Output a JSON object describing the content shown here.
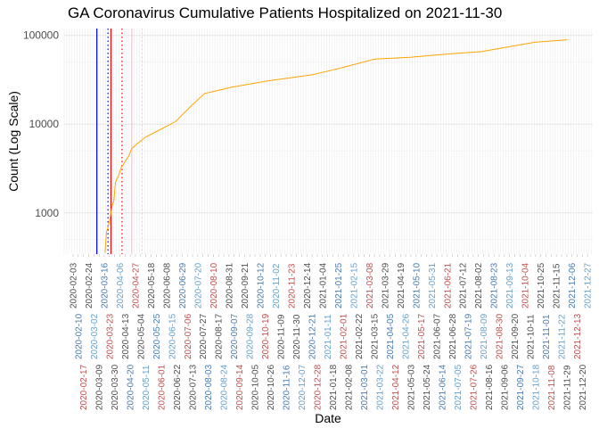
{
  "chart_data": {
    "type": "line",
    "title": "GA Coronavirus Cumulative Patients Hospitalized on 2021-11-30",
    "xlabel": "Date",
    "ylabel": "Count (Log Scale)",
    "y_scale": "log",
    "xlim": [
      "2020-01-22",
      "2022-01-03"
    ],
    "ylim": [
      343,
      119500
    ],
    "y_ticks": [
      1000,
      10000,
      100000
    ],
    "y_tick_labels": [
      "1000",
      "10000",
      "100000"
    ],
    "grid": true,
    "line_color": "#FFA500",
    "x_tick_colors": [
      "#4d4d4d",
      "#4a7ab0",
      "#c05050",
      "#4d4d4d",
      "#6aa0c8"
    ],
    "x_ticks": [
      "2020-02-03",
      "2020-02-10",
      "2020-02-17",
      "2020-02-24",
      "2020-03-02",
      "2020-03-09",
      "2020-03-16",
      "2020-03-23",
      "2020-03-30",
      "2020-04-06",
      "2020-04-13",
      "2020-04-20",
      "2020-04-27",
      "2020-05-04",
      "2020-05-11",
      "2020-05-18",
      "2020-05-25",
      "2020-06-01",
      "2020-06-08",
      "2020-06-15",
      "2020-06-22",
      "2020-06-29",
      "2020-07-06",
      "2020-07-13",
      "2020-07-20",
      "2020-07-27",
      "2020-08-03",
      "2020-08-10",
      "2020-08-17",
      "2020-08-24",
      "2020-08-31",
      "2020-09-07",
      "2020-09-14",
      "2020-09-21",
      "2020-09-28",
      "2020-10-05",
      "2020-10-12",
      "2020-10-19",
      "2020-10-26",
      "2020-11-02",
      "2020-11-09",
      "2020-11-16",
      "2020-11-23",
      "2020-11-30",
      "2020-12-07",
      "2020-12-14",
      "2020-12-21",
      "2020-12-28",
      "2021-01-04",
      "2021-01-11",
      "2021-01-18",
      "2021-01-25",
      "2021-02-01",
      "2021-02-08",
      "2021-02-15",
      "2021-02-22",
      "2021-03-01",
      "2021-03-08",
      "2021-03-15",
      "2021-03-22",
      "2021-03-29",
      "2021-04-05",
      "2021-04-12",
      "2021-04-19",
      "2021-04-26",
      "2021-05-03",
      "2021-05-10",
      "2021-05-17",
      "2021-05-24",
      "2021-05-31",
      "2021-06-07",
      "2021-06-14",
      "2021-06-21",
      "2021-06-28",
      "2021-07-05",
      "2021-07-12",
      "2021-07-19",
      "2021-07-26",
      "2021-08-02",
      "2021-08-09",
      "2021-08-16",
      "2021-08-23",
      "2021-08-30",
      "2021-09-06",
      "2021-09-13",
      "2021-09-20",
      "2021-09-27",
      "2021-10-04",
      "2021-10-11",
      "2021-10-18",
      "2021-10-25",
      "2021-11-01",
      "2021-11-08",
      "2021-11-15",
      "2021-11-22",
      "2021-11-29",
      "2021-12-06",
      "2021-12-13",
      "2021-12-20",
      "2021-12-27"
    ],
    "events": [
      {
        "date": "2020-03-06",
        "color": "#0000FF",
        "style": "solid"
      },
      {
        "date": "2020-03-21",
        "color": "#0000FF",
        "style": "dotted"
      },
      {
        "date": "2020-03-25",
        "color": "#FF0000",
        "style": "solid"
      },
      {
        "date": "2020-04-09",
        "color": "#FF0000",
        "style": "dotted"
      },
      {
        "date": "2020-04-22",
        "color": "#FFC0CB",
        "style": "solid"
      },
      {
        "date": "2020-05-06",
        "color": "#FFC0CB",
        "style": "dotted"
      }
    ],
    "series": [
      {
        "x": [
          "2020-03-17",
          "2020-03-19",
          "2020-03-23",
          "2020-03-25",
          "2020-03-27",
          "2020-03-29",
          "2020-03-31",
          "2020-04-04",
          "2020-04-08",
          "2020-04-10",
          "2020-04-15",
          "2020-04-18",
          "2020-04-22",
          "2020-04-28",
          "2020-05-10",
          "2020-05-30",
          "2020-06-20",
          "2020-07-11",
          "2020-07-29",
          "2020-09-03",
          "2020-10-21",
          "2020-12-21",
          "2021-01-26",
          "2021-03-15",
          "2021-05-02",
          "2021-06-19",
          "2021-08-06",
          "2021-08-30",
          "2021-10-17",
          "2021-11-30"
        ],
        "values": [
          354,
          605,
          796,
          1016,
          1235,
          1361,
          2213,
          2600,
          3267,
          3430,
          4035,
          4375,
          5310,
          5860,
          7110,
          8650,
          10670,
          16000,
          22100,
          26000,
          30600,
          36000,
          42400,
          54000,
          56700,
          61500,
          65600,
          71100,
          83700,
          89300
        ]
      }
    ]
  }
}
